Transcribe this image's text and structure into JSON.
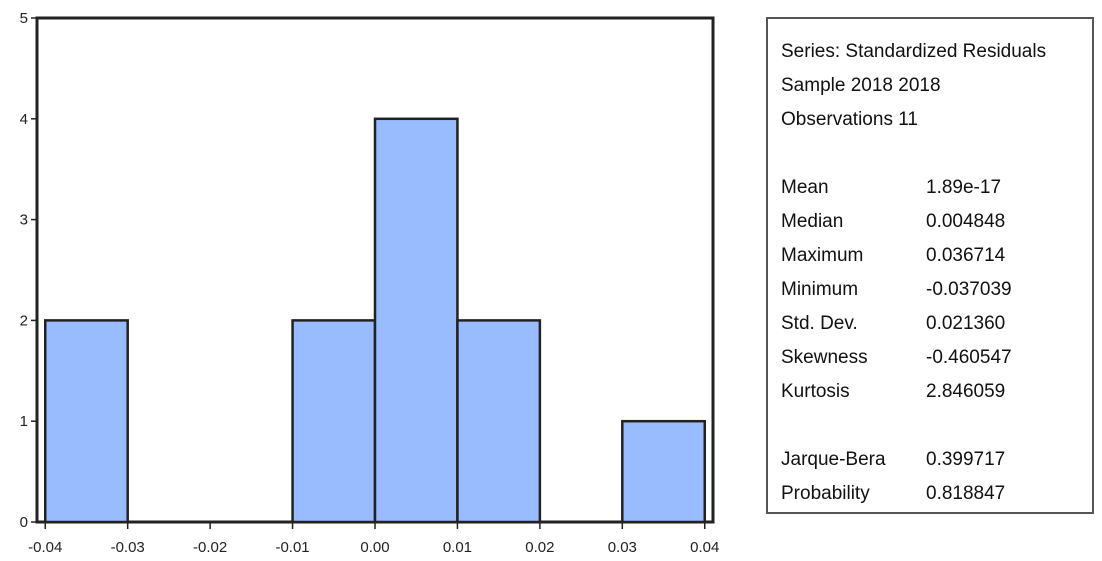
{
  "chart_data": {
    "type": "bar",
    "title": "",
    "xlabel": "",
    "ylabel": "",
    "bins": [
      {
        "x0": -0.04,
        "x1": -0.03,
        "count": 2
      },
      {
        "x0": -0.03,
        "x1": -0.02,
        "count": 0
      },
      {
        "x0": -0.02,
        "x1": -0.01,
        "count": 0
      },
      {
        "x0": -0.01,
        "x1": 0.0,
        "count": 2
      },
      {
        "x0": 0.0,
        "x1": 0.01,
        "count": 4
      },
      {
        "x0": 0.01,
        "x1": 0.02,
        "count": 2
      },
      {
        "x0": 0.02,
        "x1": 0.03,
        "count": 0
      },
      {
        "x0": 0.03,
        "x1": 0.04,
        "count": 1
      }
    ],
    "xlim": [
      -0.041,
      0.041
    ],
    "ylim": [
      0,
      5
    ],
    "x_ticks": [
      -0.04,
      -0.03,
      -0.02,
      -0.01,
      0.0,
      0.01,
      0.02,
      0.03,
      0.04
    ],
    "x_tick_labels": [
      "-0.04",
      "-0.03",
      "-0.02",
      "-0.01",
      "0.00",
      "0.01",
      "0.02",
      "0.03",
      "0.04"
    ],
    "y_ticks": [
      0,
      1,
      2,
      3,
      4,
      5
    ],
    "y_tick_labels": [
      "0",
      "1",
      "2",
      "3",
      "4",
      "5"
    ],
    "grid": false,
    "bar_color": "#99bbff",
    "bar_edge_color": "#222222"
  },
  "stats_panel": {
    "header": [
      "Series: Standardized Residuals",
      "Sample 2018 2018",
      "Observations 11"
    ],
    "rows": [
      {
        "label": "Mean",
        "value": "1.89e-17"
      },
      {
        "label": "Median",
        "value": "0.004848"
      },
      {
        "label": "Maximum",
        "value": "0.036714"
      },
      {
        "label": "Minimum",
        "value": "-0.037039"
      },
      {
        "label": "Std. Dev.",
        "value": "0.021360"
      },
      {
        "label": "Skewness",
        "value": "-0.460547"
      },
      {
        "label": "Kurtosis",
        "value": "2.846059"
      }
    ],
    "tests": [
      {
        "label": "Jarque-Bera",
        "value": "0.399717"
      },
      {
        "label": "Probability",
        "value": "0.818847"
      }
    ]
  }
}
